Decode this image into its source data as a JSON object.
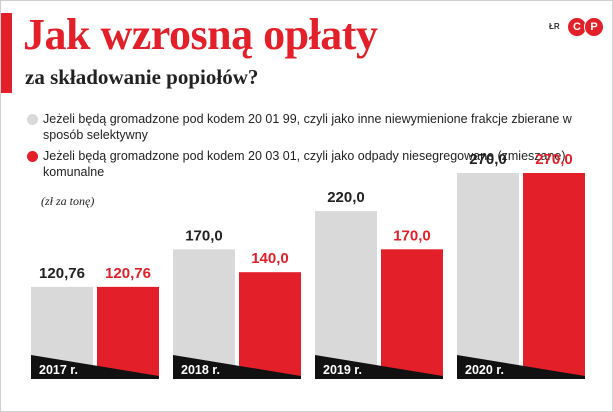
{
  "title": "Jak wzrosną opłaty",
  "subtitle": "za składowanie popiołów?",
  "credit": "ŁR",
  "logo_letters": [
    "C",
    "P"
  ],
  "colors": {
    "accent": "#e3202a",
    "gray": "#d9d9d9",
    "label_band": "#111111"
  },
  "legend": [
    {
      "color": "#d9d9d9",
      "text": "Jeżeli będą gromadzone pod kodem 20 01 99, czyli jako inne niewymienione frakcje zbierane w sposób selektywny"
    },
    {
      "color": "#e3202a",
      "text": "Jeżeli będą gromadzone pod kodem 20 03 01, czyli jako odpady niesegregowane (zmieszane) komunalne"
    }
  ],
  "unit": "(zł za tonę)",
  "chart_data": {
    "type": "bar",
    "title": "Jak wzrosną opłaty",
    "subtitle": "za składowanie popiołów?",
    "categories": [
      "2017 r.",
      "2018 r.",
      "2019 r.",
      "2020 r."
    ],
    "series": [
      {
        "name": "Jeżeli będą gromadzone pod kodem 20 01 99, czyli jako inne niewymienione frakcje zbierane w sposób selektywny",
        "color": "#d9d9d9",
        "values": [
          120.76,
          170.0,
          220.0,
          270.0
        ],
        "labels": [
          "120,76",
          "170,0",
          "220,0",
          "270,0"
        ]
      },
      {
        "name": "Jeżeli będą gromadzone pod kodem 20 03 01, czyli jako odpady niesegregowane (zmieszane) komunalne",
        "color": "#e3202a",
        "values": [
          120.76,
          140.0,
          170.0,
          270.0
        ],
        "labels": [
          "120,76",
          "140,0",
          "170,0",
          "270,0"
        ]
      }
    ],
    "ylabel": "(zł za tonę)",
    "ylim": [
      0,
      270
    ],
    "grid": false,
    "legend_position": "top"
  }
}
